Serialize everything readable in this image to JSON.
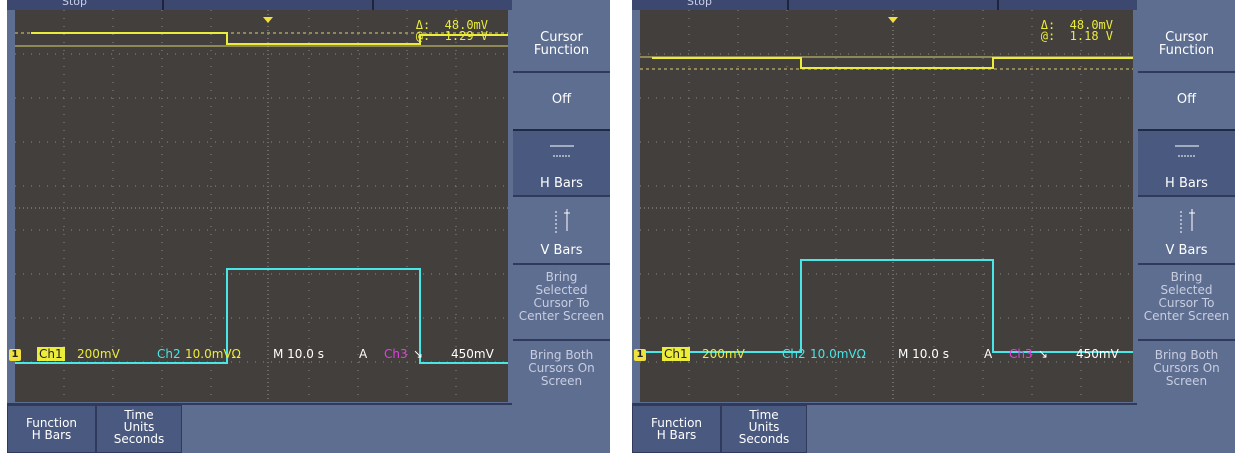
{
  "panels": [
    {
      "status_text": "Stop",
      "readout": {
        "delta": "Δ:  48.0mV",
        "at": "@:  1.29 V"
      },
      "status": {
        "ch1_badge": "1",
        "ch1": "Ch1",
        "ch1_scale": "200mV",
        "ch2": "Ch2",
        "ch2_scale": "10.0mVΩ",
        "timebase": "M 10.0 s",
        "trigger_mode": "A",
        "trigger_source": "Ch3",
        "trigger_slope": "↘",
        "trigger_level": "450mV"
      },
      "menu": {
        "title": "Cursor\nFunction",
        "off": "Off",
        "hbars": "H Bars",
        "vbars": "V Bars",
        "bring_selected": "Bring\nSelected\nCursor To\nCenter Screen",
        "bring_both": "Bring Both\nCursors On\nScreen"
      },
      "bottom": {
        "function_label": "Function",
        "function_value": "H Bars",
        "time_units_label": "Time\nUnits",
        "time_units_value": "Seconds"
      }
    },
    {
      "status_text": "Stop",
      "readout": {
        "delta": "Δ:  48.0mV",
        "at": "@:  1.18 V"
      },
      "status": {
        "ch1_badge": "1",
        "ch1": "Ch1",
        "ch1_scale": "200mV",
        "ch2": "Ch2",
        "ch2_scale": "10.0mVΩ",
        "timebase": "M 10.0 s",
        "trigger_mode": "A",
        "trigger_source": "Ch3",
        "trigger_slope": "↘",
        "trigger_level": "450mV"
      },
      "menu": {
        "title": "Cursor\nFunction",
        "off": "Off",
        "hbars": "H Bars",
        "vbars": "V Bars",
        "bring_selected": "Bring\nSelected\nCursor To\nCenter Screen",
        "bring_both": "Bring Both\nCursors On\nScreen"
      },
      "bottom": {
        "function_label": "Function",
        "function_value": "H Bars",
        "time_units_label": "Time\nUnits",
        "time_units_value": "Seconds"
      }
    }
  ],
  "colors": {
    "ch1_trace": "#ecec3a",
    "ch2_trace": "#48e6e6",
    "ch3_label": "#e040e0",
    "screen_bg": "#423f3c",
    "frame": "#5d6e91"
  }
}
